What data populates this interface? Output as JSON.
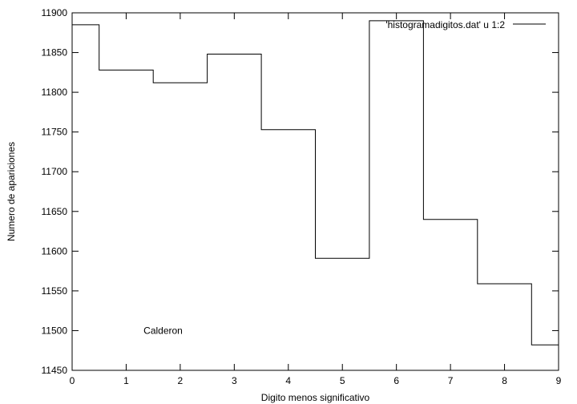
{
  "chart_data": {
    "type": "line",
    "step": true,
    "x": [
      0,
      1,
      2,
      3,
      4,
      5,
      6,
      7,
      8,
      9
    ],
    "series": [
      {
        "name": "'histogramadigitos.dat' u 1:2",
        "values": [
          11885,
          11828,
          11812,
          11848,
          11753,
          11591,
          11890,
          11640,
          11559,
          11482
        ]
      }
    ],
    "xlim": [
      0,
      9
    ],
    "ylim": [
      11450,
      11900
    ],
    "xticks": [
      0,
      1,
      2,
      3,
      4,
      5,
      6,
      7,
      8,
      9
    ],
    "yticks": [
      11450,
      11500,
      11550,
      11600,
      11650,
      11700,
      11750,
      11800,
      11850,
      11900
    ],
    "xlabel": "Digito menos significativo",
    "ylabel": "Numero de apariciones",
    "legend_position": "top-right",
    "annotations": [
      {
        "text": "Calderon",
        "x": 1.5,
        "y": 11500
      }
    ],
    "line_color": "#000000",
    "grid": false
  }
}
